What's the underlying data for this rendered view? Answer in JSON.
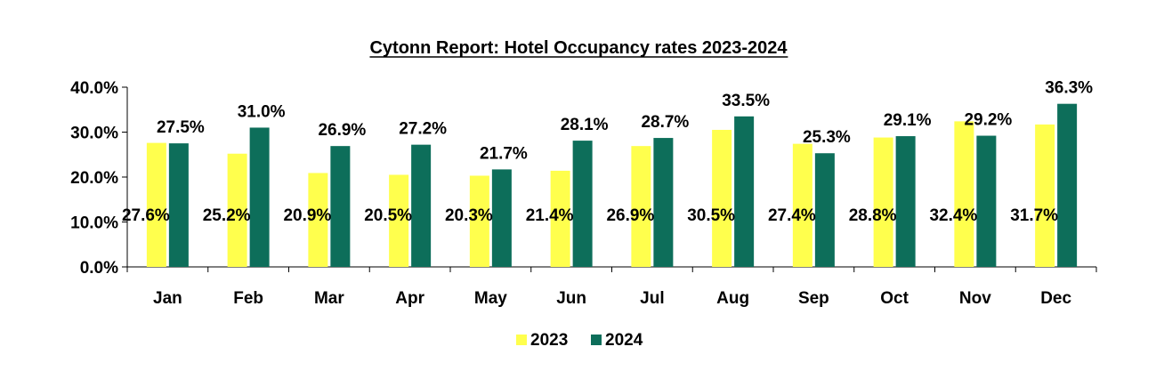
{
  "chart_data": {
    "type": "bar",
    "title": "Cytonn Report: Hotel Occupancy rates 2023-2024",
    "xlabel": "",
    "ylabel": "",
    "categories": [
      "Jan",
      "Feb",
      "Mar",
      "Apr",
      "May",
      "Jun",
      "Jul",
      "Aug",
      "Sep",
      "Oct",
      "Nov",
      "Dec"
    ],
    "series": [
      {
        "name": "2023",
        "color": "#FFFF4D",
        "values": [
          27.6,
          25.2,
          20.9,
          20.5,
          20.3,
          21.4,
          26.9,
          30.5,
          27.4,
          28.8,
          32.4,
          31.7
        ],
        "labels": [
          "27.6%",
          "25.2%",
          "20.9%",
          "20.5%",
          "20.3%",
          "21.4%",
          "26.9%",
          "30.5%",
          "27.4%",
          "28.8%",
          "32.4%",
          "31.7%"
        ]
      },
      {
        "name": "2024",
        "color": "#0D6E5A",
        "values": [
          27.5,
          31.0,
          26.9,
          27.2,
          21.7,
          28.1,
          28.7,
          33.5,
          25.3,
          29.1,
          29.2,
          36.3
        ],
        "labels": [
          "27.5%",
          "31.0%",
          "26.9%",
          "27.2%",
          "21.7%",
          "28.1%",
          "28.7%",
          "33.5%",
          "25.3%",
          "29.1%",
          "29.2%",
          "36.3%"
        ]
      }
    ],
    "ylim": [
      0,
      40
    ],
    "yticks": [
      0,
      10,
      20,
      30,
      40
    ],
    "ytick_labels": [
      "0.0%",
      "10.0%",
      "20.0%",
      "30.0%",
      "40.0%"
    ],
    "legend_placement": "bottom-center",
    "grid": false
  }
}
